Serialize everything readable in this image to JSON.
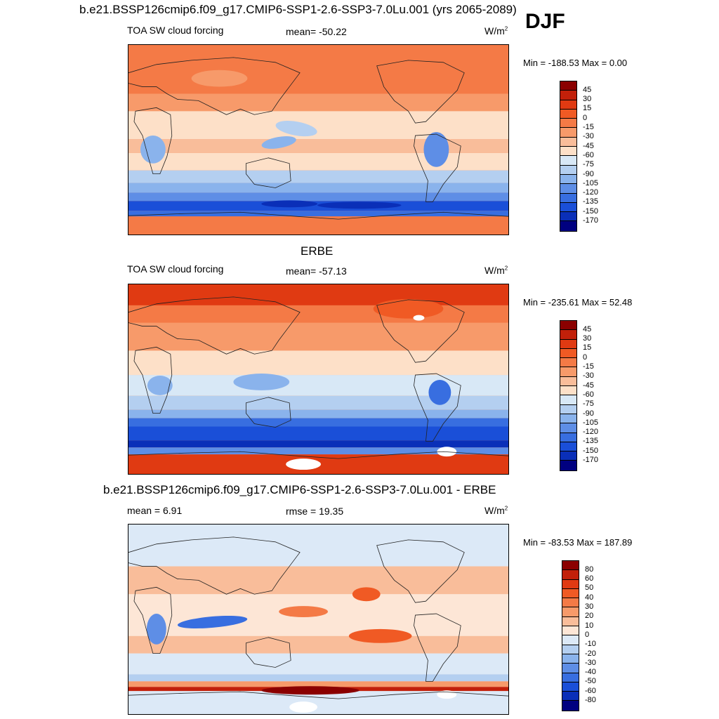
{
  "season": "DJF",
  "panels": [
    {
      "title": "b.e21.BSSP126cmip6.f09_g17.CMIP6-SSP1-2.6-SSP3-7.0Lu.001 (yrs 2065-2089)",
      "left_label": "TOA SW cloud forcing",
      "center_label": "mean= -50.22",
      "units": "W/m",
      "units_sup": "2",
      "minmax": "Min = -188.53 Max =   0.00",
      "colorbar": {
        "ticks": [
          "45",
          "30",
          "15",
          "0",
          "-15",
          "-30",
          "-45",
          "-60",
          "-75",
          "-90",
          "-105",
          "-120",
          "-135",
          "-150",
          "-170"
        ],
        "colors": [
          "#8b0000",
          "#c2200a",
          "#e03a12",
          "#f05a24",
          "#f47a46",
          "#f79a6a",
          "#f9bd9a",
          "#fde0c8",
          "#d8e8f6",
          "#b4cff0",
          "#8ab3ec",
          "#5e8ee6",
          "#386ee0",
          "#1a4fd8",
          "#0a2fb8",
          "#000080"
        ]
      },
      "map_style": "model"
    },
    {
      "title": "ERBE",
      "left_label": "TOA SW cloud forcing",
      "center_label": "mean= -57.13",
      "units": "W/m",
      "units_sup": "2",
      "minmax": "Min = -235.61 Max =  52.48",
      "colorbar": {
        "ticks": [
          "45",
          "30",
          "15",
          "0",
          "-15",
          "-30",
          "-45",
          "-60",
          "-75",
          "-90",
          "-105",
          "-120",
          "-135",
          "-150",
          "-170"
        ],
        "colors": [
          "#8b0000",
          "#c2200a",
          "#e03a12",
          "#f05a24",
          "#f47a46",
          "#f79a6a",
          "#f9bd9a",
          "#fde0c8",
          "#d8e8f6",
          "#b4cff0",
          "#8ab3ec",
          "#5e8ee6",
          "#386ee0",
          "#1a4fd8",
          "#0a2fb8",
          "#000080"
        ]
      },
      "map_style": "obs"
    },
    {
      "title": "b.e21.BSSP126cmip6.f09_g17.CMIP6-SSP1-2.6-SSP3-7.0Lu.001 - ERBE",
      "left_label": "mean =   6.91",
      "center_label": "rmse =  19.35",
      "units": "W/m",
      "units_sup": "2",
      "minmax": "Min = -83.53 Max = 187.89",
      "colorbar": {
        "ticks": [
          "80",
          "60",
          "50",
          "40",
          "30",
          "20",
          "10",
          "0",
          "-10",
          "-20",
          "-30",
          "-40",
          "-50",
          "-60",
          "-80"
        ],
        "colors": [
          "#8b0000",
          "#c2200a",
          "#e03a12",
          "#f05a24",
          "#f47a46",
          "#f79a6a",
          "#f9bd9a",
          "#fde6d6",
          "#dce9f7",
          "#b4cff0",
          "#8ab3ec",
          "#5e8ee6",
          "#386ee0",
          "#1a4fd8",
          "#0a2fb8",
          "#000080"
        ]
      },
      "map_style": "diff"
    }
  ],
  "chart_data": [
    {
      "type": "heatmap",
      "title": "b.e21.BSSP126cmip6.f09_g17.CMIP6-SSP1-2.6-SSP3-7.0Lu.001 (yrs 2065-2089)",
      "variable": "TOA SW cloud forcing",
      "units": "W/m2",
      "season": "DJF",
      "mean": -50.22,
      "min": -188.53,
      "max": 0.0,
      "contour_levels": [
        -170,
        -150,
        -135,
        -120,
        -105,
        -90,
        -75,
        -60,
        -45,
        -30,
        -15,
        0,
        15,
        30,
        45
      ]
    },
    {
      "type": "heatmap",
      "title": "ERBE",
      "variable": "TOA SW cloud forcing",
      "units": "W/m2",
      "season": "DJF",
      "mean": -57.13,
      "min": -235.61,
      "max": 52.48,
      "contour_levels": [
        -170,
        -150,
        -135,
        -120,
        -105,
        -90,
        -75,
        -60,
        -45,
        -30,
        -15,
        0,
        15,
        30,
        45
      ]
    },
    {
      "type": "heatmap",
      "title": "b.e21.BSSP126cmip6.f09_g17.CMIP6-SSP1-2.6-SSP3-7.0Lu.001 - ERBE",
      "units": "W/m2",
      "mean": 6.91,
      "rmse": 19.35,
      "min": -83.53,
      "max": 187.89,
      "contour_levels": [
        -80,
        -60,
        -50,
        -40,
        -30,
        -20,
        -10,
        0,
        10,
        20,
        30,
        40,
        50,
        60,
        80
      ]
    }
  ]
}
